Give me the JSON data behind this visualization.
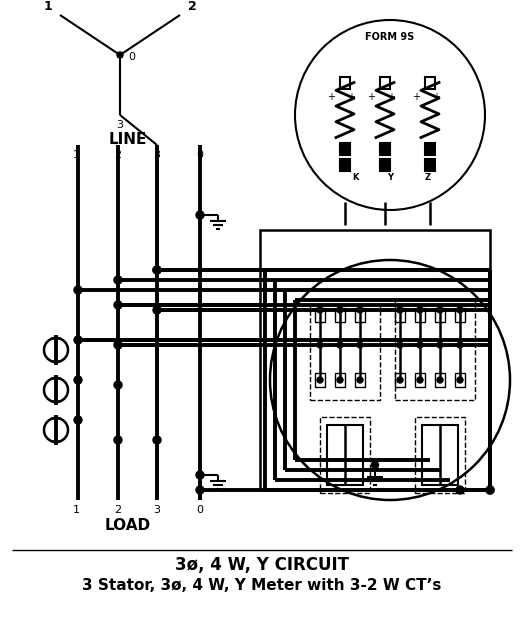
{
  "title_line1": "3ø, 4 W, Y CIRCUIT",
  "title_line2": "3 Stator, 3ø, 4 W, Y Meter with 3-2 W CT’s",
  "bg_color": "#ffffff",
  "line_color": "#000000",
  "fig_width": 5.24,
  "fig_height": 6.34,
  "dpi": 100,
  "form_label": "FORM 9S"
}
